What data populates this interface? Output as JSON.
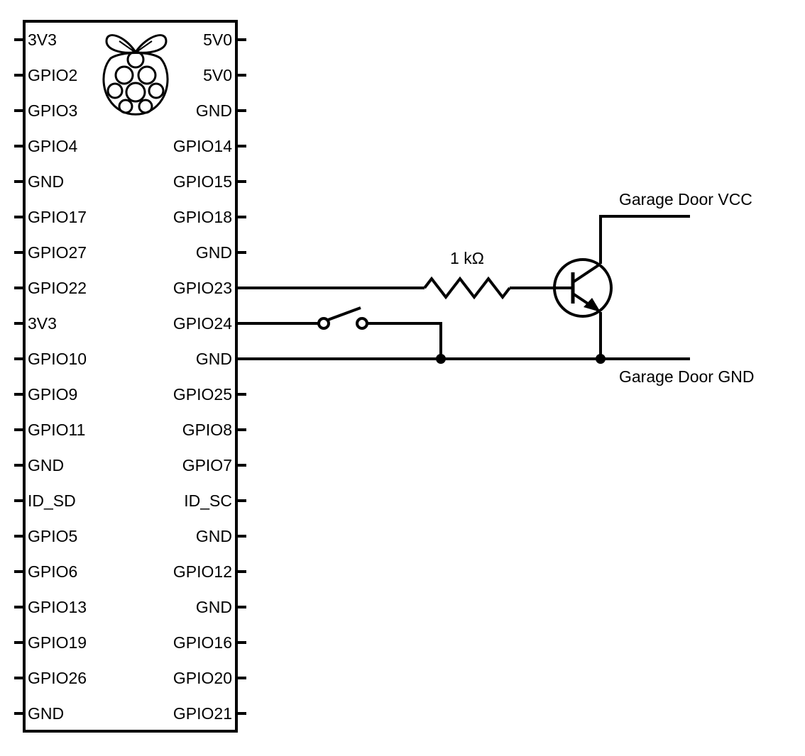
{
  "header_pins": {
    "left": [
      "3V3",
      "GPIO2",
      "GPIO3",
      "GPIO4",
      "GND",
      "GPIO17",
      "GPIO27",
      "GPIO22",
      "3V3",
      "GPIO10",
      "GPIO9",
      "GPIO11",
      "GND",
      "ID_SD",
      "GPIO5",
      "GPIO6",
      "GPIO13",
      "GPIO19",
      "GPIO26",
      "GND"
    ],
    "right": [
      "5V0",
      "5V0",
      "GND",
      "GPIO14",
      "GPIO15",
      "GPIO18",
      "GND",
      "GPIO23",
      "GPIO24",
      "GND",
      "GPIO25",
      "GPIO8",
      "GPIO7",
      "ID_SC",
      "GND",
      "GPIO12",
      "GND",
      "GPIO16",
      "GPIO20",
      "GPIO21"
    ]
  },
  "components": {
    "resistor_label": "1 kΩ",
    "vcc_label": "Garage Door VCC",
    "gnd_label": "Garage Door GND"
  },
  "logo": {
    "icon": "raspberry-pi-logo"
  },
  "colors": {
    "ink": "#000000",
    "background": "#ffffff"
  }
}
